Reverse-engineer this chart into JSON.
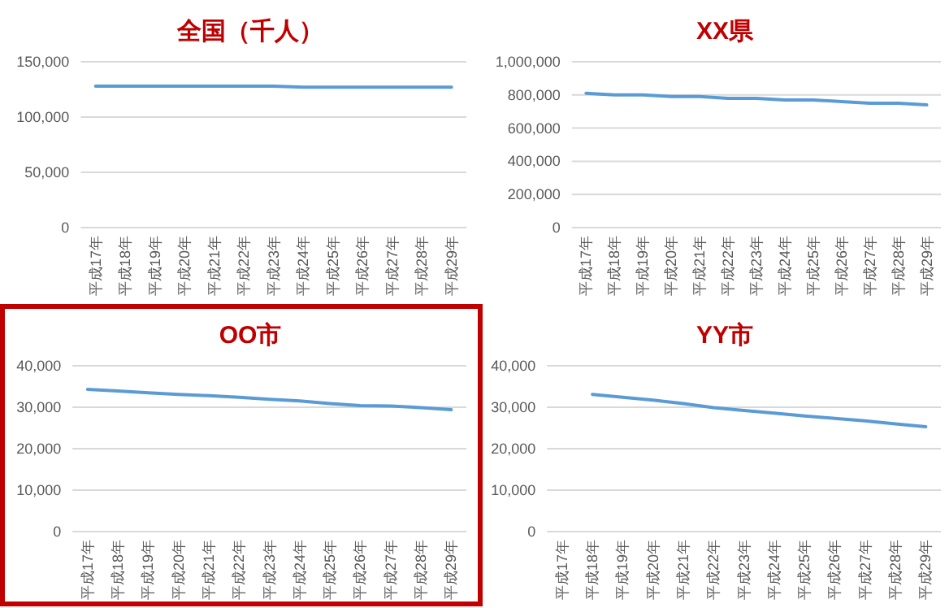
{
  "chart_data": [
    {
      "type": "line",
      "title": "全国（千人）",
      "categories": [
        "平成17年",
        "平成18年",
        "平成19年",
        "平成20年",
        "平成21年",
        "平成22年",
        "平成23年",
        "平成24年",
        "平成25年",
        "平成26年",
        "平成27年",
        "平成28年",
        "平成29年"
      ],
      "values": [
        128000,
        128000,
        128000,
        128000,
        128000,
        128000,
        128000,
        127000,
        127000,
        127000,
        127000,
        127000,
        127000
      ],
      "color": "#5b9bd5",
      "ylim": [
        0,
        150000
      ],
      "yticks": [
        {
          "value": 0,
          "label": "0"
        },
        {
          "value": 50000,
          "label": "50,000"
        },
        {
          "value": 100000,
          "label": "100,000"
        },
        {
          "value": 150000,
          "label": "150,000"
        }
      ],
      "grid": "y"
    },
    {
      "type": "line",
      "title": "XX県",
      "categories": [
        "平成17年",
        "平成18年",
        "平成19年",
        "平成20年",
        "平成21年",
        "平成22年",
        "平成23年",
        "平成24年",
        "平成25年",
        "平成26年",
        "平成27年",
        "平成28年",
        "平成29年"
      ],
      "values": [
        810000,
        800000,
        800000,
        790000,
        790000,
        780000,
        780000,
        770000,
        770000,
        760000,
        750000,
        750000,
        740000
      ],
      "color": "#5b9bd5",
      "ylim": [
        0,
        1000000
      ],
      "yticks": [
        {
          "value": 0,
          "label": "0"
        },
        {
          "value": 200000,
          "label": "200,000"
        },
        {
          "value": 400000,
          "label": "400,000"
        },
        {
          "value": 600000,
          "label": "600,000"
        },
        {
          "value": 800000,
          "label": "800,000"
        },
        {
          "value": 1000000,
          "label": "1,000,000"
        }
      ],
      "grid": "y"
    },
    {
      "type": "line",
      "title": "OO市",
      "categories": [
        "平成17年",
        "平成18年",
        "平成19年",
        "平成20年",
        "平成21年",
        "平成22年",
        "平成23年",
        "平成24年",
        "平成25年",
        "平成26年",
        "平成27年",
        "平成28年",
        "平成29年"
      ],
      "values": [
        34300,
        33900,
        33500,
        33100,
        32800,
        32400,
        31900,
        31500,
        30900,
        30400,
        30300,
        29900,
        29400
      ],
      "color": "#5b9bd5",
      "ylim": [
        0,
        40000
      ],
      "yticks": [
        {
          "value": 0,
          "label": "0"
        },
        {
          "value": 10000,
          "label": "10,000"
        },
        {
          "value": 20000,
          "label": "20,000"
        },
        {
          "value": 30000,
          "label": "30,000"
        },
        {
          "value": 40000,
          "label": "40,000"
        }
      ],
      "grid": "y"
    },
    {
      "type": "line",
      "title": "YY市",
      "categories": [
        "平成17年",
        "平成18年",
        "平成19年",
        "平成20年",
        "平成21年",
        "平成22年",
        "平成23年",
        "平成24年",
        "平成25年",
        "平成26年",
        "平成27年",
        "平成28年",
        "平成29年"
      ],
      "values": [
        null,
        33100,
        32400,
        31700,
        30900,
        29900,
        29200,
        28600,
        27900,
        27300,
        26700,
        26000,
        25300
      ],
      "color": "#5b9bd5",
      "ylim": [
        0,
        40000
      ],
      "yticks": [
        {
          "value": 0,
          "label": "0"
        },
        {
          "value": 10000,
          "label": "10,000"
        },
        {
          "value": 20000,
          "label": "20,000"
        },
        {
          "value": 30000,
          "label": "30,000"
        },
        {
          "value": 40000,
          "label": "40,000"
        }
      ],
      "grid": "y"
    }
  ]
}
